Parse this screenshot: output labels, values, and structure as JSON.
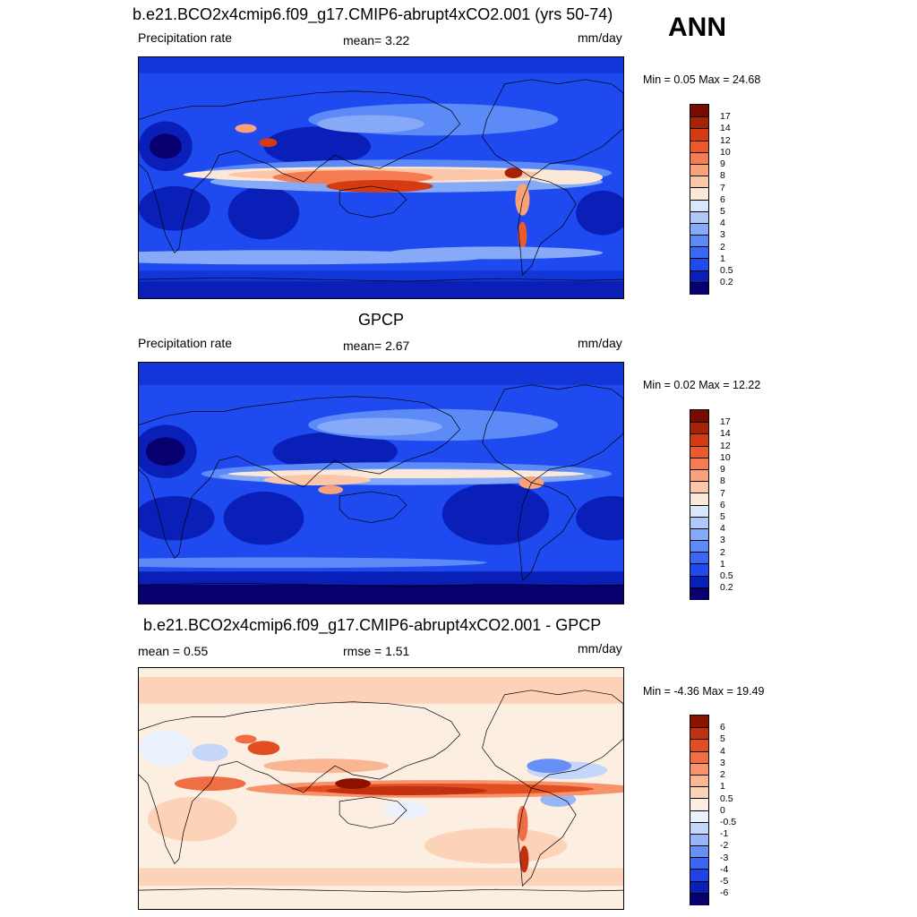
{
  "season": "ANN",
  "panels": [
    {
      "title": "b.e21.BCO2x4cmip6.f09_g17.CMIP6-abrupt4xCO2.001 (yrs 50-74)",
      "left_label": "Precipitation rate",
      "center_label": "mean=   3.22",
      "right_label": "mm/day",
      "minmax": "Min =   0.05 Max =  24.68",
      "palette": "blue-red",
      "colorbar_labels": [
        "17",
        "14",
        "12",
        "10",
        "9",
        "8",
        "7",
        "6",
        "5",
        "4",
        "3",
        "2",
        "1",
        "0.5",
        "0.2"
      ]
    },
    {
      "title": "GPCP",
      "left_label": "Precipitation rate",
      "center_label": "mean=   2.67",
      "right_label": "mm/day",
      "minmax": "Min =   0.02 Max =  12.22",
      "palette": "blue-red",
      "colorbar_labels": [
        "17",
        "14",
        "12",
        "10",
        "9",
        "8",
        "7",
        "6",
        "5",
        "4",
        "3",
        "2",
        "1",
        "0.5",
        "0.2"
      ]
    },
    {
      "title": "b.e21.BCO2x4cmip6.f09_g17.CMIP6-abrupt4xCO2.001 - GPCP",
      "left_label": "mean =   0.55",
      "center_label": "rmse =   1.51",
      "right_label": "mm/day",
      "minmax": "Min =  -4.36 Max =  19.49",
      "palette": "diverging",
      "colorbar_labels": [
        "6",
        "5",
        "4",
        "3",
        "2",
        "1",
        "0.5",
        "0",
        "-0.5",
        "-1",
        "-2",
        "-3",
        "-4",
        "-5",
        "-6"
      ]
    }
  ],
  "colors": {
    "abs_scale": [
      "#08006f",
      "#0a1fb8",
      "#1236d8",
      "#1e4af0",
      "#3868f4",
      "#5c8af6",
      "#86aaf7",
      "#b0c8f8",
      "#d9e6fb",
      "#fce8d8",
      "#fbc7a8",
      "#f9a27a",
      "#f57c52",
      "#ec5a2c",
      "#d43b12",
      "#a82208",
      "#780c00"
    ],
    "diff_scale": [
      "#08006f",
      "#0a1fb8",
      "#1e42e6",
      "#3a66f2",
      "#6690f5",
      "#97b6f8",
      "#c4d6fa",
      "#ebf0fd",
      "#fdeee2",
      "#fcd2b8",
      "#fab592",
      "#f7926a",
      "#f06e44",
      "#e14e22",
      "#c23010",
      "#8c1200"
    ],
    "land_outline": "#000000"
  }
}
